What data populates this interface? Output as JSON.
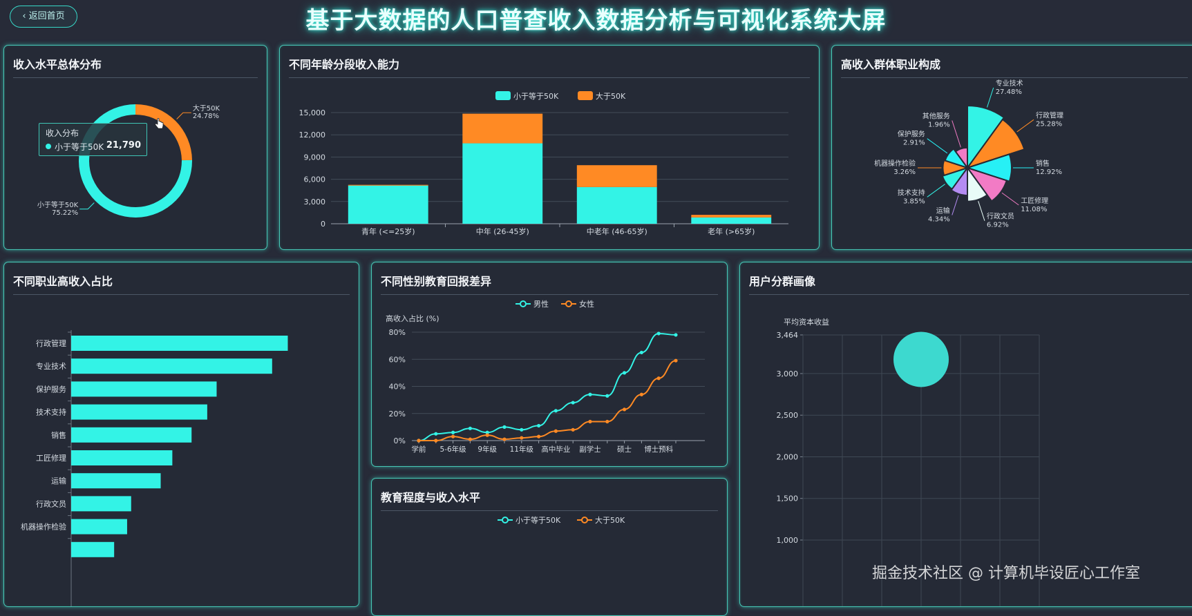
{
  "header": {
    "back_label": "返回首页",
    "title": "基于大数据的人口普查收入数据分析与可视化系统大屏"
  },
  "watermark": "掘金技术社区 @ 计算机毕设匠心工作室",
  "panels": {
    "income_dist": {
      "title": "收入水平总体分布"
    },
    "age_income": {
      "title": "不同年龄分段收入能力"
    },
    "high_income_jobs": {
      "title": "高收入群体职业构成"
    },
    "job_ratio": {
      "title": "不同职业高收入占比"
    },
    "gender_edu": {
      "title": "不同性别教育回报差异"
    },
    "edu_income": {
      "title": "教育程度与收入水平"
    },
    "user_cluster": {
      "title": "用户分群画像"
    }
  },
  "tooltip": {
    "title": "收入分布",
    "series": "小于等于50K",
    "value": "21,790"
  },
  "colors": {
    "cyan": "#33f3e6",
    "orange": "#ff8a24",
    "panel_border": "#47c9b7"
  },
  "icons": {
    "back": "chevron-left-icon",
    "cursor": "hand-pointer-icon"
  },
  "chart_data": [
    {
      "id": "income_dist",
      "type": "pie",
      "variant": "donut",
      "slices": [
        {
          "name": "大于50K",
          "value": 24.78,
          "label": "24.78%",
          "color": "#ff8a24"
        },
        {
          "name": "小于等于50K",
          "value": 75.22,
          "label": "75.22%",
          "color": "#33f3e6"
        }
      ]
    },
    {
      "id": "age_income",
      "type": "bar",
      "stacked": true,
      "categories": [
        "青年 (<=25岁)",
        "中年 (26-45岁)",
        "中老年 (46-65岁)",
        "老年 (>65岁)"
      ],
      "series": [
        {
          "name": "小于等于50K",
          "color": "#33f3e6",
          "values": [
            5150,
            10850,
            4950,
            850
          ]
        },
        {
          "name": "大于50K",
          "color": "#ff8a24",
          "values": [
            100,
            4000,
            2950,
            350
          ]
        }
      ],
      "yticks": [
        0,
        3000,
        6000,
        9000,
        12000,
        15000
      ],
      "ytick_labels": [
        "0",
        "3,000",
        "6,000",
        "9,000",
        "12,000",
        "15,000"
      ],
      "ylim": [
        0,
        15000
      ],
      "legend": "top-center",
      "grid": true
    },
    {
      "id": "high_income_jobs",
      "type": "pie",
      "variant": "rose",
      "slices": [
        {
          "name": "专业技术",
          "label": "27.48%",
          "value": 27.48,
          "color": "#33f3e6"
        },
        {
          "name": "行政管理",
          "label": "25.28%",
          "value": 25.28,
          "color": "#ff8a24"
        },
        {
          "name": "销售",
          "label": "12.92%",
          "value": 12.92,
          "color": "#27f0f5"
        },
        {
          "name": "工匠修理",
          "label": "11.08%",
          "value": 11.08,
          "color": "#f27bc5"
        },
        {
          "name": "行政文员",
          "label": "6.92%",
          "value": 6.92,
          "color": "#e8fbf7"
        },
        {
          "name": "运输",
          "label": "4.34%",
          "value": 4.34,
          "color": "#b48cf2"
        },
        {
          "name": "技术支持",
          "label": "3.85%",
          "value": 3.85,
          "color": "#33f3e6"
        },
        {
          "name": "机器操作检验",
          "label": "3.26%",
          "value": 3.26,
          "color": "#ff8a24"
        },
        {
          "name": "保护服务",
          "label": "2.91%",
          "value": 2.91,
          "color": "#27f0f5"
        },
        {
          "name": "其他服务",
          "label": "1.96%",
          "value": 1.96,
          "color": "#f27bc5"
        }
      ]
    },
    {
      "id": "job_ratio",
      "type": "bar",
      "orientation": "horizontal",
      "categories": [
        "行政管理",
        "专业技术",
        "保护服务",
        "技术支持",
        "销售",
        "工匠修理",
        "运输",
        "行政文员",
        "机器操作检验",
        ""
      ],
      "values": [
        48.4,
        44.9,
        32.5,
        30.4,
        26.9,
        22.6,
        20.0,
        13.4,
        12.5,
        9.6
      ],
      "xlim": [
        0,
        60
      ],
      "color": "#33f3e6"
    },
    {
      "id": "gender_edu",
      "type": "line",
      "x": [
        "学前",
        "",
        "5-6年级",
        "",
        "9年级",
        "",
        "11年级",
        "",
        "高中毕业",
        "",
        "副学士",
        "",
        "硕士",
        "",
        "博士预科",
        ""
      ],
      "xtick_labels": [
        "学前",
        "5-6年级",
        "9年级",
        "11年级",
        "高中毕业",
        "副学士",
        "硕士",
        "博士预科"
      ],
      "series": [
        {
          "name": "男性",
          "color": "#33f3e6",
          "values": [
            0,
            5,
            6,
            9,
            6,
            10,
            8,
            11,
            22,
            28,
            34,
            33,
            50,
            65,
            79,
            78
          ]
        },
        {
          "name": "女性",
          "color": "#ff8a24",
          "values": [
            0,
            0,
            3,
            1,
            4,
            1,
            2,
            3,
            7,
            8,
            14,
            14,
            23,
            34,
            46,
            59
          ]
        }
      ],
      "ylabel": "高收入占比 (%)",
      "yticks": [
        "0%",
        "20%",
        "40%",
        "60%",
        "80%"
      ],
      "ylim": [
        0,
        80
      ],
      "legend": "top-center",
      "grid": true
    },
    {
      "id": "edu_income",
      "type": "line",
      "series": [
        {
          "name": "小于等于50K",
          "color": "#33f3e6",
          "values": []
        },
        {
          "name": "大于50K",
          "color": "#ff8a24",
          "values": []
        }
      ],
      "legend": "top-center"
    },
    {
      "id": "user_cluster",
      "type": "scatter",
      "ylabel": "平均资本收益",
      "yticks": [
        1000,
        1500,
        2000,
        2500,
        3000,
        3464
      ],
      "ytick_labels": [
        "1,000",
        "1,500",
        "2,000",
        "2,500",
        "3,000",
        "3,464"
      ],
      "ylim": [
        1000,
        3464
      ],
      "points": [
        {
          "x": 0.5,
          "y": 3170,
          "size": 40
        }
      ],
      "grid": true
    }
  ]
}
